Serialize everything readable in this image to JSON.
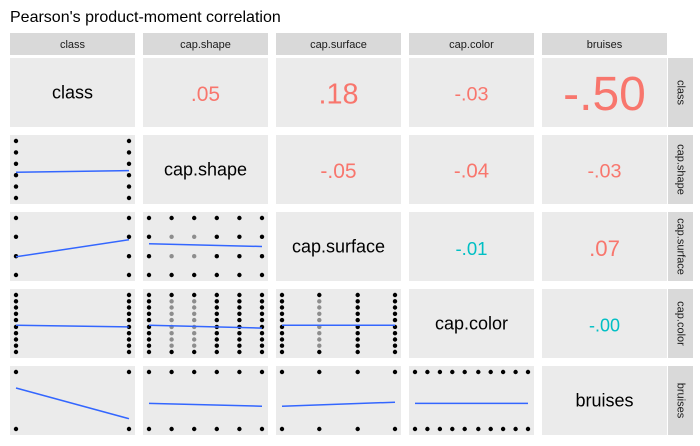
{
  "title": "Pearson's product-moment correlation",
  "colors": {
    "panel_bg": "#ebebeb",
    "strip_bg": "#d9d9d9",
    "positive": "#f8766d",
    "negative": "#00bfc4",
    "line": "#3366ff",
    "point": "#000000"
  },
  "chart_data": {
    "type": "scatter-matrix",
    "title": "Pearson's product-moment correlation",
    "variables": [
      "class",
      "cap.shape",
      "cap.surface",
      "cap.color",
      "bruises"
    ],
    "correlations": [
      {
        "row": "class",
        "col": "cap.shape",
        "value": 0.05,
        "label": ".05"
      },
      {
        "row": "class",
        "col": "cap.surface",
        "value": 0.18,
        "label": ".18"
      },
      {
        "row": "class",
        "col": "cap.color",
        "value": -0.03,
        "label": "-.03"
      },
      {
        "row": "class",
        "col": "bruises",
        "value": -0.5,
        "label": "-.50"
      },
      {
        "row": "cap.shape",
        "col": "cap.surface",
        "value": -0.05,
        "label": "-.05"
      },
      {
        "row": "cap.shape",
        "col": "cap.color",
        "value": -0.04,
        "label": "-.04"
      },
      {
        "row": "cap.shape",
        "col": "bruises",
        "value": -0.03,
        "label": "-.03"
      },
      {
        "row": "cap.surface",
        "col": "cap.color",
        "value": -0.01,
        "label": "-.01"
      },
      {
        "row": "cap.surface",
        "col": "bruises",
        "value": 0.07,
        "label": ".07"
      },
      {
        "row": "cap.color",
        "col": "bruises",
        "value": -0.0,
        "label": "-.00"
      }
    ],
    "scatter_panels": [
      {
        "x": "class",
        "y": "cap.shape",
        "fit": [
          0.45,
          0.48
        ]
      },
      {
        "x": "class",
        "y": "cap.surface",
        "fit": [
          0.32,
          0.62
        ]
      },
      {
        "x": "cap.shape",
        "y": "cap.surface",
        "fit": [
          0.55,
          0.5
        ]
      },
      {
        "x": "class",
        "y": "cap.color",
        "fit": [
          0.47,
          0.44
        ]
      },
      {
        "x": "cap.shape",
        "y": "cap.color",
        "fit": [
          0.47,
          0.42
        ]
      },
      {
        "x": "cap.surface",
        "y": "cap.color",
        "fit": [
          0.47,
          0.47
        ]
      },
      {
        "x": "class",
        "y": "bruises",
        "fit": [
          0.72,
          0.18
        ]
      },
      {
        "x": "cap.shape",
        "y": "bruises",
        "fit": [
          0.45,
          0.4
        ]
      },
      {
        "x": "cap.surface",
        "y": "bruises",
        "fit": [
          0.4,
          0.47
        ]
      },
      {
        "x": "cap.color",
        "y": "bruises",
        "fit": [
          0.45,
          0.45
        ]
      }
    ]
  }
}
